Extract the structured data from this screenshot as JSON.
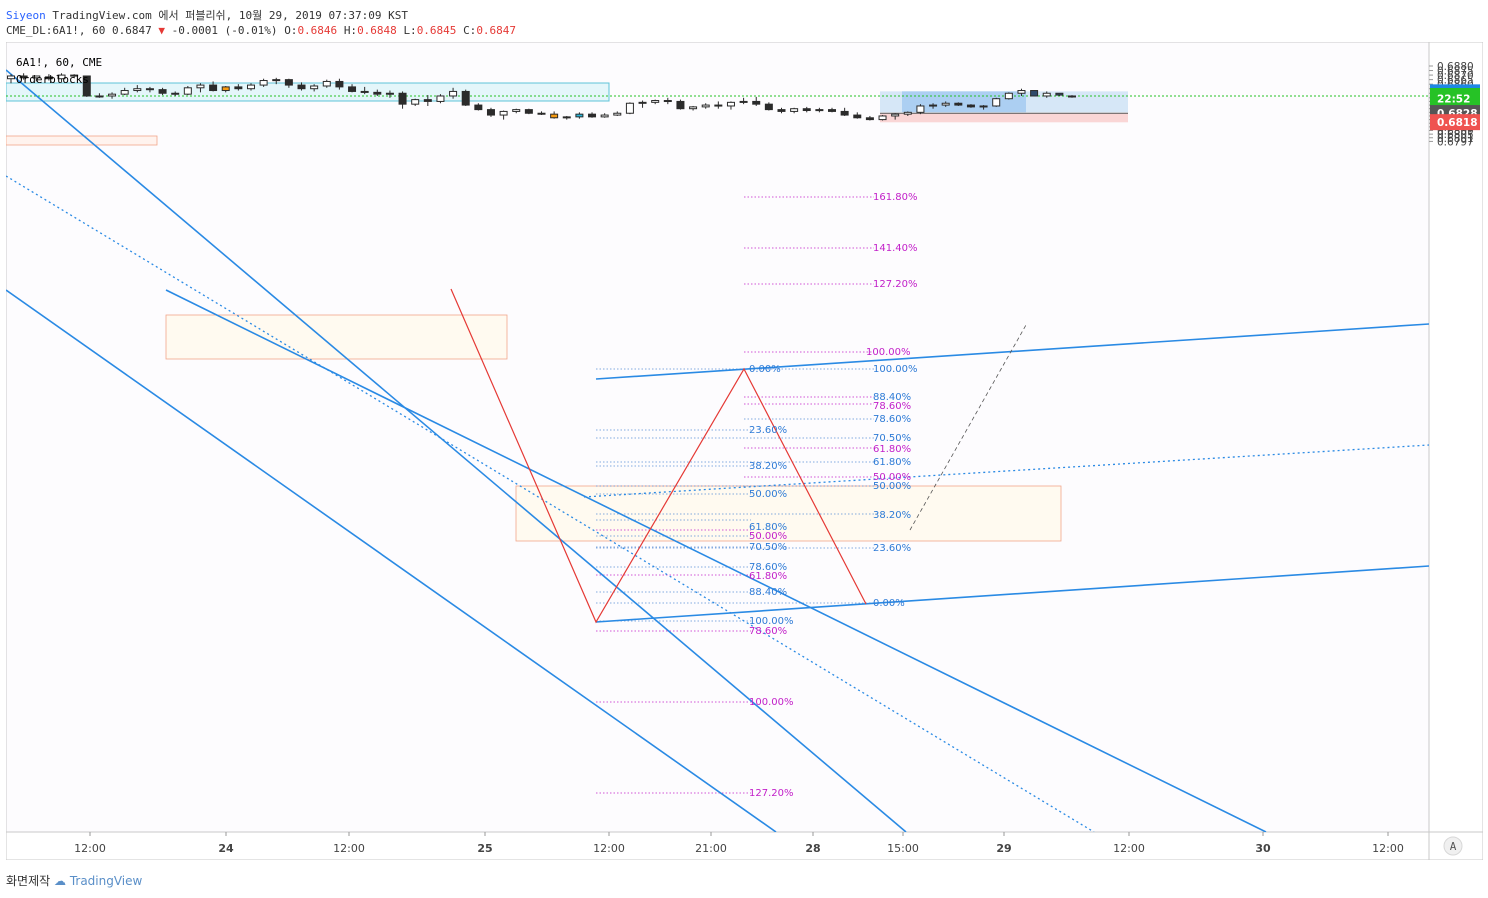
{
  "header": {
    "author": "Siyeon",
    "publish_text": "TradingView.com 에서 퍼블리쉬, 10월 29, 2019 07:37:09 KST",
    "symbol_line": "CME_DL:6A1!, 60",
    "last": "0.6847",
    "change": "-0.0001 (-0.01%)",
    "ohlc_o_label": "O:",
    "ohlc_o": "0.6846",
    "ohlc_h_label": "H:",
    "ohlc_h": "0.6848",
    "ohlc_l_label": "L:",
    "ohlc_l": "0.6845",
    "ohlc_c_label": "C:",
    "ohlc_c": "0.6847"
  },
  "legend": {
    "instrument": "6A1!, 60, CME",
    "indicator": "Orderblocks"
  },
  "price_axis": {
    "ticks": [
      "0.6880",
      "0.6875",
      "0.6870",
      "0.6865",
      "0.6860",
      "0.6855",
      "0.6850",
      "0.6845",
      "0.6841",
      "0.6837",
      "0.6833",
      "0.6829",
      "0.6825",
      "0.6821",
      "0.6817",
      "0.6813",
      "0.6809",
      "0.6805",
      "0.6801",
      "0.6797"
    ],
    "ticks_values": [
      0.688,
      0.6875,
      0.687,
      0.6865,
      0.686,
      0.6855,
      0.685,
      0.6845,
      0.6841,
      0.6837,
      0.6833,
      0.6829,
      0.6825,
      0.6821,
      0.6817,
      0.6813,
      0.6809,
      0.6805,
      0.6801,
      0.6797
    ],
    "markers": [
      {
        "label": "0.6851",
        "value": 0.6851,
        "color": "#1e88e5"
      },
      {
        "label": "0.6847",
        "value": 0.6847,
        "color": "#26c226"
      },
      {
        "label": "22:52",
        "value": 0.68445,
        "color": "#26c226"
      },
      {
        "label": "0.6828",
        "value": 0.68282,
        "color": "#555555"
      },
      {
        "label": "0.6818",
        "value": 0.68182,
        "color": "#ef5350"
      }
    ]
  },
  "time_axis": {
    "ticks": [
      "12:00",
      "24",
      "12:00",
      "25",
      "12:00",
      "21:00",
      "28",
      "15:00",
      "29",
      "12:00",
      "30",
      "12:00"
    ],
    "bold": [
      false,
      true,
      false,
      true,
      false,
      false,
      true,
      false,
      true,
      false,
      true,
      false
    ]
  },
  "corner_label": "A",
  "fib_labels": [
    "161.80%",
    "141.40%",
    "127.20%",
    "100.00%",
    "100.00%",
    "88.40%",
    "78.60%",
    "78.60%",
    "70.50%",
    "61.80%",
    "61.80%",
    "50.00%",
    "50.00%",
    "38.20%",
    "23.60%",
    "0.00%",
    "0.00%",
    "23.60%",
    "38.20%",
    "50.00%",
    "61.80%",
    "50.00%",
    "70.50%",
    "78.60%",
    "61.80%",
    "88.40%",
    "100.00%",
    "78.60%",
    "100.00%",
    "127.20%"
  ],
  "fib_colors": {
    "blue": "#2e7bd6",
    "magenta": "#c21fc9",
    "axis_green": "#26c226"
  },
  "chart_data": {
    "type": "candlestick",
    "symbol": "CME_DL:6A1!",
    "interval": "60",
    "last_price": 0.6847,
    "price_range": [
      0.6794,
      0.6884
    ],
    "candles_ohlc_approx": [
      [
        0.6866,
        0.6871,
        0.6861,
        0.6869
      ],
      [
        0.6869,
        0.6872,
        0.6865,
        0.6867
      ],
      [
        0.6867,
        0.6869,
        0.6863,
        0.6869
      ],
      [
        0.6868,
        0.6871,
        0.6864,
        0.6866
      ],
      [
        0.6866,
        0.6872,
        0.6862,
        0.687
      ],
      [
        0.687,
        0.6871,
        0.6867,
        0.6869
      ],
      [
        0.6869,
        0.6869,
        0.6846,
        0.6847
      ],
      [
        0.6847,
        0.685,
        0.6845,
        0.6847
      ],
      [
        0.6847,
        0.6851,
        0.6844,
        0.6849
      ],
      [
        0.6849,
        0.6856,
        0.6848,
        0.6853
      ],
      [
        0.6853,
        0.6859,
        0.6851,
        0.6855
      ],
      [
        0.6855,
        0.6857,
        0.6851,
        0.6854
      ],
      [
        0.6854,
        0.6856,
        0.6848,
        0.685
      ],
      [
        0.685,
        0.6852,
        0.6847,
        0.6849
      ],
      [
        0.6849,
        0.6858,
        0.6848,
        0.6856
      ],
      [
        0.6856,
        0.6861,
        0.6851,
        0.6859
      ],
      [
        0.6859,
        0.6863,
        0.6852,
        0.6853
      ],
      [
        0.6853,
        0.6858,
        0.6851,
        0.6857
      ],
      [
        0.6857,
        0.686,
        0.6853,
        0.6855
      ],
      [
        0.6855,
        0.6861,
        0.6853,
        0.6859
      ],
      [
        0.6859,
        0.6866,
        0.6857,
        0.6864
      ],
      [
        0.6864,
        0.6867,
        0.686,
        0.6865
      ],
      [
        0.6865,
        0.6866,
        0.6856,
        0.6859
      ],
      [
        0.6859,
        0.6862,
        0.6853,
        0.6855
      ],
      [
        0.6855,
        0.686,
        0.6852,
        0.6858
      ],
      [
        0.6858,
        0.6865,
        0.6856,
        0.6863
      ],
      [
        0.6863,
        0.6866,
        0.6854,
        0.6857
      ],
      [
        0.6857,
        0.686,
        0.6851,
        0.6852
      ],
      [
        0.6852,
        0.6857,
        0.6849,
        0.6851
      ],
      [
        0.6851,
        0.6854,
        0.6847,
        0.6849
      ],
      [
        0.6849,
        0.6853,
        0.6845,
        0.685
      ],
      [
        0.685,
        0.6852,
        0.6833,
        0.6838
      ],
      [
        0.6838,
        0.6844,
        0.6836,
        0.6843
      ],
      [
        0.6843,
        0.6848,
        0.6836,
        0.6841
      ],
      [
        0.6841,
        0.6849,
        0.6839,
        0.6847
      ],
      [
        0.6847,
        0.6856,
        0.6844,
        0.6852
      ],
      [
        0.6852,
        0.6854,
        0.6836,
        0.6837
      ],
      [
        0.6837,
        0.6839,
        0.6831,
        0.6832
      ],
      [
        0.6832,
        0.6834,
        0.6824,
        0.6826
      ],
      [
        0.6826,
        0.6831,
        0.6821,
        0.683
      ],
      [
        0.683,
        0.6833,
        0.6828,
        0.6832
      ],
      [
        0.6832,
        0.6833,
        0.6827,
        0.6828
      ],
      [
        0.6828,
        0.683,
        0.6826,
        0.6827
      ],
      [
        0.6827,
        0.683,
        0.6822,
        0.6823
      ],
      [
        0.6823,
        0.6825,
        0.6821,
        0.6824
      ],
      [
        0.6824,
        0.6829,
        0.6822,
        0.6827
      ],
      [
        0.6827,
        0.6829,
        0.6823,
        0.6824
      ],
      [
        0.6824,
        0.6828,
        0.6823,
        0.6826
      ],
      [
        0.6826,
        0.683,
        0.6825,
        0.6828
      ],
      [
        0.6828,
        0.684,
        0.6827,
        0.6839
      ],
      [
        0.6839,
        0.6842,
        0.6834,
        0.684
      ],
      [
        0.684,
        0.6843,
        0.6838,
        0.6842
      ],
      [
        0.6842,
        0.6845,
        0.6838,
        0.6841
      ],
      [
        0.6841,
        0.6843,
        0.6832,
        0.6833
      ],
      [
        0.6833,
        0.6836,
        0.6831,
        0.6835
      ],
      [
        0.6835,
        0.6839,
        0.6833,
        0.6837
      ],
      [
        0.6837,
        0.6841,
        0.6833,
        0.6836
      ],
      [
        0.6836,
        0.6841,
        0.6832,
        0.684
      ],
      [
        0.684,
        0.6845,
        0.6838,
        0.6841
      ],
      [
        0.6841,
        0.6846,
        0.6836,
        0.6838
      ],
      [
        0.6838,
        0.684,
        0.6831,
        0.6832
      ],
      [
        0.6832,
        0.6834,
        0.6828,
        0.683
      ],
      [
        0.683,
        0.6834,
        0.6828,
        0.6833
      ],
      [
        0.6833,
        0.6835,
        0.6829,
        0.6831
      ],
      [
        0.6831,
        0.6834,
        0.6829,
        0.6832
      ],
      [
        0.6832,
        0.6834,
        0.6829,
        0.683
      ],
      [
        0.683,
        0.6834,
        0.6825,
        0.6826
      ],
      [
        0.6826,
        0.6829,
        0.6822,
        0.6823
      ],
      [
        0.6823,
        0.6825,
        0.682,
        0.6821
      ],
      [
        0.6821,
        0.6826,
        0.682,
        0.6825
      ],
      [
        0.6825,
        0.6828,
        0.6821,
        0.6827
      ],
      [
        0.6827,
        0.683,
        0.6825,
        0.6829
      ],
      [
        0.6829,
        0.6838,
        0.6827,
        0.6836
      ],
      [
        0.6836,
        0.6839,
        0.6833,
        0.6837
      ],
      [
        0.6837,
        0.6841,
        0.6835,
        0.6839
      ],
      [
        0.6839,
        0.684,
        0.6836,
        0.6837
      ],
      [
        0.6837,
        0.6838,
        0.6834,
        0.6835
      ],
      [
        0.6835,
        0.6837,
        0.6832,
        0.6836
      ],
      [
        0.6836,
        0.6845,
        0.6835,
        0.6844
      ],
      [
        0.6844,
        0.6851,
        0.6843,
        0.685
      ],
      [
        0.685,
        0.6855,
        0.6847,
        0.6853
      ],
      [
        0.6853,
        0.6853,
        0.6847,
        0.6847
      ],
      [
        0.6847,
        0.6852,
        0.6845,
        0.685
      ],
      [
        0.685,
        0.685,
        0.6847,
        0.6848
      ],
      [
        0.6846,
        0.6848,
        0.6845,
        0.6847
      ]
    ],
    "position_tool": {
      "entry": 0.6828,
      "target": 0.6851,
      "stop": 0.6818
    }
  }
}
